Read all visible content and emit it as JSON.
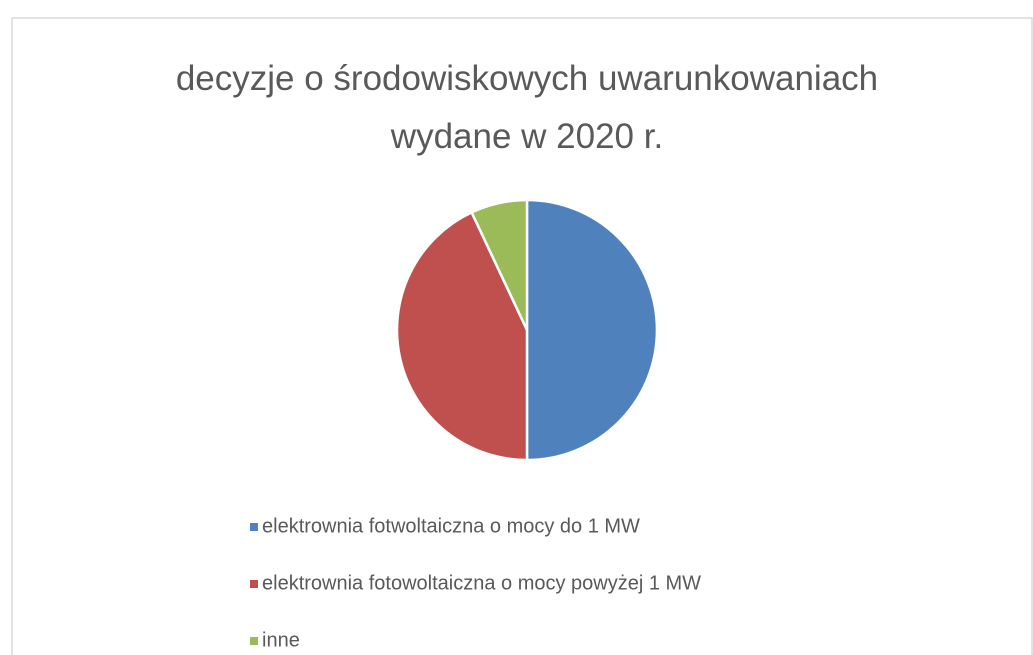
{
  "chart_data": {
    "type": "pie",
    "title": "decyzje o środowiskowych uwarunkowaniach wydane w 2020 r.",
    "categories": [
      "elektrownia fotwoltaiczna o mocy do 1 MW",
      "elektrownia fotowoltaiczna o mocy powyżej 1 MW",
      "inne"
    ],
    "values": [
      50,
      43,
      7
    ],
    "colors": [
      "#4f81bd",
      "#c0504d",
      "#9bbb59"
    ],
    "legend": "bottom"
  }
}
